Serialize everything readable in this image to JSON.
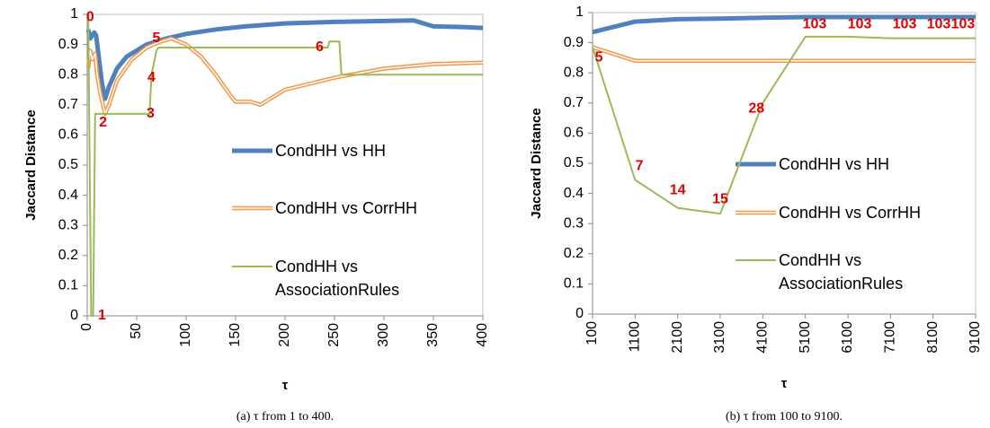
{
  "chart_data": [
    {
      "type": "line",
      "caption": "(a)  τ from 1 to 400.",
      "xlabel": "τ",
      "ylabel": "Jaccard Distance",
      "xlim": [
        0,
        400
      ],
      "xticks": [
        0,
        50,
        100,
        150,
        200,
        250,
        300,
        350,
        400
      ],
      "ylim": [
        0,
        1
      ],
      "yticks": [
        0,
        0.1,
        0.2,
        0.3,
        0.4,
        0.5,
        0.6,
        0.7,
        0.8,
        0.9,
        1
      ],
      "series": [
        {
          "name": "CondHH vs HH",
          "color": "#4f81bd",
          "style": "thick",
          "x": [
            1,
            3,
            5,
            7,
            9,
            12,
            15,
            18,
            22,
            30,
            40,
            60,
            80,
            100,
            130,
            160,
            200,
            250,
            300,
            330,
            340,
            350,
            380,
            400
          ],
          "values": [
            0.95,
            0.92,
            0.93,
            0.94,
            0.93,
            0.85,
            0.77,
            0.72,
            0.76,
            0.82,
            0.86,
            0.9,
            0.92,
            0.935,
            0.95,
            0.96,
            0.97,
            0.975,
            0.978,
            0.98,
            0.97,
            0.96,
            0.958,
            0.955
          ]
        },
        {
          "name": "CondHH vs CorrHH",
          "color": "#f79646",
          "style": "double",
          "x": [
            1,
            3,
            5,
            8,
            10,
            13,
            18,
            22,
            30,
            45,
            60,
            75,
            85,
            100,
            115,
            130,
            145,
            150,
            165,
            175,
            200,
            250,
            300,
            350,
            400
          ],
          "values": [
            0.82,
            0.88,
            0.85,
            0.87,
            0.8,
            0.74,
            0.67,
            0.7,
            0.78,
            0.85,
            0.89,
            0.91,
            0.92,
            0.9,
            0.86,
            0.8,
            0.73,
            0.71,
            0.71,
            0.7,
            0.75,
            0.79,
            0.82,
            0.835,
            0.84
          ]
        },
        {
          "name": "CondHH vs AssociationRules",
          "color": "#9bbb59",
          "style": "plain",
          "x": [
            1,
            4,
            6,
            8,
            63,
            65,
            70,
            72,
            243,
            245,
            255,
            257,
            400
          ],
          "values": [
            1,
            0,
            0,
            0.67,
            0.67,
            0.8,
            0.88,
            0.89,
            0.89,
            0.91,
            0.91,
            0.8,
            0.8
          ]
        }
      ],
      "annotations": [
        {
          "text": "0",
          "x": 3,
          "y": 0.99
        },
        {
          "text": "1",
          "x": 15,
          "y": 0
        },
        {
          "text": "2",
          "x": 16,
          "y": 0.64
        },
        {
          "text": "3",
          "x": 64,
          "y": 0.67
        },
        {
          "text": "4",
          "x": 65,
          "y": 0.79
        },
        {
          "text": "5",
          "x": 70,
          "y": 0.92
        },
        {
          "text": "6",
          "x": 235,
          "y": 0.89
        }
      ]
    },
    {
      "type": "line",
      "caption": "(b)  τ from 100 to 9100.",
      "xlabel": "τ",
      "ylabel": "Jaccard Distance",
      "xlim": [
        100,
        9100
      ],
      "xticks": [
        100,
        1100,
        2100,
        3100,
        4100,
        5100,
        6100,
        7100,
        8100,
        9100
      ],
      "ylim": [
        0,
        1
      ],
      "yticks": [
        0,
        0.1,
        0.2,
        0.3,
        0.4,
        0.5,
        0.6,
        0.7,
        0.8,
        0.9,
        1
      ],
      "x": [
        100,
        1100,
        2100,
        3100,
        4100,
        5100,
        6100,
        7100,
        8100,
        9100
      ],
      "series": [
        {
          "name": "CondHH vs HH",
          "color": "#4f81bd",
          "style": "thick",
          "values": [
            0.935,
            0.97,
            0.978,
            0.98,
            0.983,
            0.985,
            0.985,
            0.985,
            0.985,
            0.985
          ]
        },
        {
          "name": "CondHH vs CorrHH",
          "color": "#f79646",
          "style": "double",
          "values": [
            0.885,
            0.84,
            0.84,
            0.84,
            0.84,
            0.84,
            0.84,
            0.84,
            0.84,
            0.84
          ]
        },
        {
          "name": "CondHH vs AssociationRules",
          "color": "#9bbb59",
          "style": "plain",
          "values": [
            0.885,
            0.445,
            0.352,
            0.333,
            0.7,
            0.92,
            0.92,
            0.915,
            0.915,
            0.915
          ]
        }
      ],
      "annotations": [
        {
          "text": "5",
          "x": 250,
          "y": 0.85
        },
        {
          "text": "7",
          "x": 1200,
          "y": 0.49
        },
        {
          "text": "14",
          "x": 2100,
          "y": 0.41
        },
        {
          "text": "15",
          "x": 3100,
          "y": 0.38
        },
        {
          "text": "28",
          "x": 3950,
          "y": 0.68
        },
        {
          "text": "103",
          "x": 5318,
          "y": 0.96
        },
        {
          "text": "103",
          "x": 6375,
          "y": 0.96
        },
        {
          "text": "103",
          "x": 7431,
          "y": 0.96
        },
        {
          "text": "103",
          "x": 8234,
          "y": 0.96
        },
        {
          "text": "103",
          "x": 8804,
          "y": 0.96
        }
      ]
    }
  ]
}
